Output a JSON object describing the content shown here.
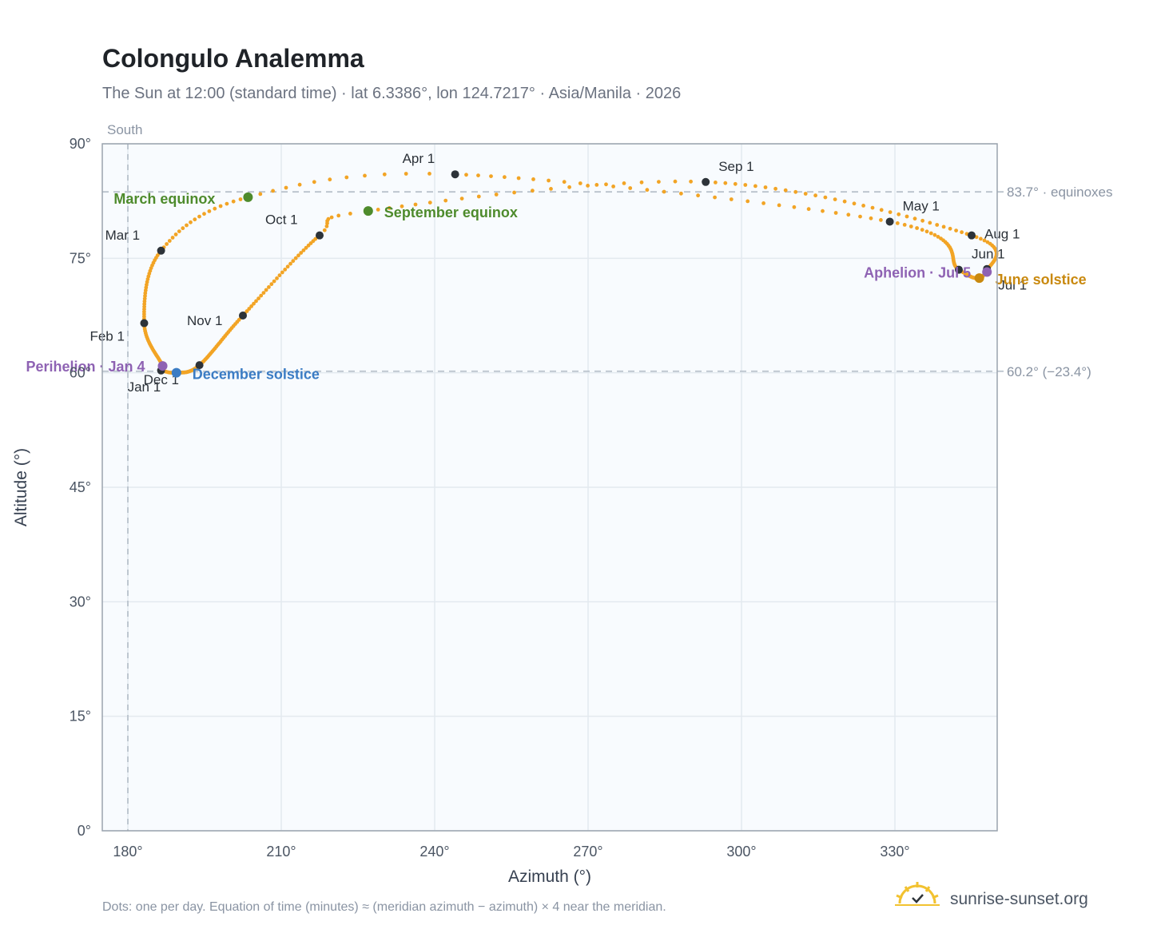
{
  "title": "Colongulo Analemma",
  "subtitle": "The Sun at 12:00 (standard time) · lat 6.3386°, lon 124.7217° · Asia/Manila · 2026",
  "footnote": "Dots: one per day. Equation of time (minutes) ≈ (meridian azimuth − azimuth) × 4 near the meridian.",
  "brand": {
    "name": "sunrise-sunset.org",
    "icon": "sun-logo-icon"
  },
  "colors": {
    "curve": "#f2a425",
    "month_marker": "#2d3339",
    "equinox": "#4e8b2c",
    "december_solstice": "#3b7cc4",
    "june_solstice": "#c9890f",
    "apsis": "#8e62b3",
    "plot_bg": "#f8fbfe",
    "grid": "#e3e9ef",
    "frame": "#9aa3ae",
    "ref_line": "#b9c2cc"
  },
  "chart_data": {
    "type": "scatter",
    "title": "Colongulo Analemma",
    "xlabel": "Azimuth (°)",
    "ylabel": "Altitude (°)",
    "xlim": [
      175,
      350
    ],
    "ylim": [
      0,
      90
    ],
    "x_ticks": [
      180,
      210,
      240,
      270,
      300,
      330
    ],
    "x_tick_labels": [
      "180°",
      "210°",
      "240°",
      "270°",
      "300°",
      "330°"
    ],
    "y_ticks": [
      0,
      15,
      30,
      45,
      60,
      75,
      90
    ],
    "y_tick_labels": [
      "0°",
      "15°",
      "30°",
      "45°",
      "60°",
      "75°",
      "90°"
    ],
    "grid": true,
    "reference_lines": [
      {
        "axis": "x",
        "value": 180,
        "label": "South"
      },
      {
        "axis": "y",
        "value": 83.7,
        "label": "83.7° · equinoxes"
      },
      {
        "axis": "y",
        "value": 60.2,
        "label": "60.2° (−23.4°)"
      }
    ],
    "path_anchors": [
      {
        "day": 1,
        "az": 186.5,
        "alt": 60.3
      },
      {
        "day": 4,
        "az": 186.8,
        "alt": 60.9
      },
      {
        "day": 32,
        "az": 183.2,
        "alt": 66.5
      },
      {
        "day": 60,
        "az": 186.5,
        "alt": 76.0
      },
      {
        "day": 79,
        "az": 203.5,
        "alt": 83.0
      },
      {
        "day": 91,
        "az": 244.0,
        "alt": 86.0
      },
      {
        "day": 121,
        "az": 329.0,
        "alt": 79.8
      },
      {
        "day": 152,
        "az": 342.5,
        "alt": 73.5
      },
      {
        "day": 172,
        "az": 346.5,
        "alt": 72.4
      },
      {
        "day": 182,
        "az": 348.0,
        "alt": 73.6
      },
      {
        "day": 186,
        "az": 348.0,
        "alt": 73.2
      },
      {
        "day": 213,
        "az": 345.0,
        "alt": 78.0
      },
      {
        "day": 244,
        "az": 293.0,
        "alt": 85.0
      },
      {
        "day": 265,
        "az": 227.0,
        "alt": 81.2
      },
      {
        "day": 274,
        "az": 217.5,
        "alt": 78.0
      },
      {
        "day": 305,
        "az": 202.5,
        "alt": 67.5
      },
      {
        "day": 335,
        "az": 194.0,
        "alt": 61.0
      },
      {
        "day": 355,
        "az": 189.5,
        "alt": 60.0
      },
      {
        "day": 365,
        "az": 186.6,
        "alt": 60.3
      }
    ],
    "month_markers": [
      {
        "label": "Jan 1",
        "az": 186.5,
        "alt": 60.3
      },
      {
        "label": "Feb 1",
        "az": 183.2,
        "alt": 66.5
      },
      {
        "label": "Mar 1",
        "az": 186.5,
        "alt": 76.0
      },
      {
        "label": "Apr 1",
        "az": 244.0,
        "alt": 86.0
      },
      {
        "label": "May 1",
        "az": 329.0,
        "alt": 79.8
      },
      {
        "label": "Jun 1",
        "az": 342.5,
        "alt": 73.5
      },
      {
        "label": "Jul 1",
        "az": 348.0,
        "alt": 73.6
      },
      {
        "label": "Aug 1",
        "az": 345.0,
        "alt": 78.0
      },
      {
        "label": "Sep 1",
        "az": 293.0,
        "alt": 85.0
      },
      {
        "label": "Oct 1",
        "az": 217.5,
        "alt": 78.0
      },
      {
        "label": "Nov 1",
        "az": 202.5,
        "alt": 67.5
      },
      {
        "label": "Dec 1",
        "az": 194.0,
        "alt": 61.0
      }
    ],
    "events": [
      {
        "label": "March equinox",
        "az": 203.5,
        "alt": 83.0,
        "kind": "equinox"
      },
      {
        "label": "September equinox",
        "az": 227.0,
        "alt": 81.2,
        "kind": "equinox"
      },
      {
        "label": "December solstice",
        "az": 189.5,
        "alt": 60.0,
        "kind": "december_solstice"
      },
      {
        "label": "June solstice",
        "az": 346.5,
        "alt": 72.4,
        "kind": "june_solstice"
      },
      {
        "label": "Perihelion · Jan 4",
        "az": 186.8,
        "alt": 60.9,
        "kind": "apsis"
      },
      {
        "label": "Aphelion · Jul 5",
        "az": 348.0,
        "alt": 73.2,
        "kind": "apsis"
      }
    ]
  }
}
